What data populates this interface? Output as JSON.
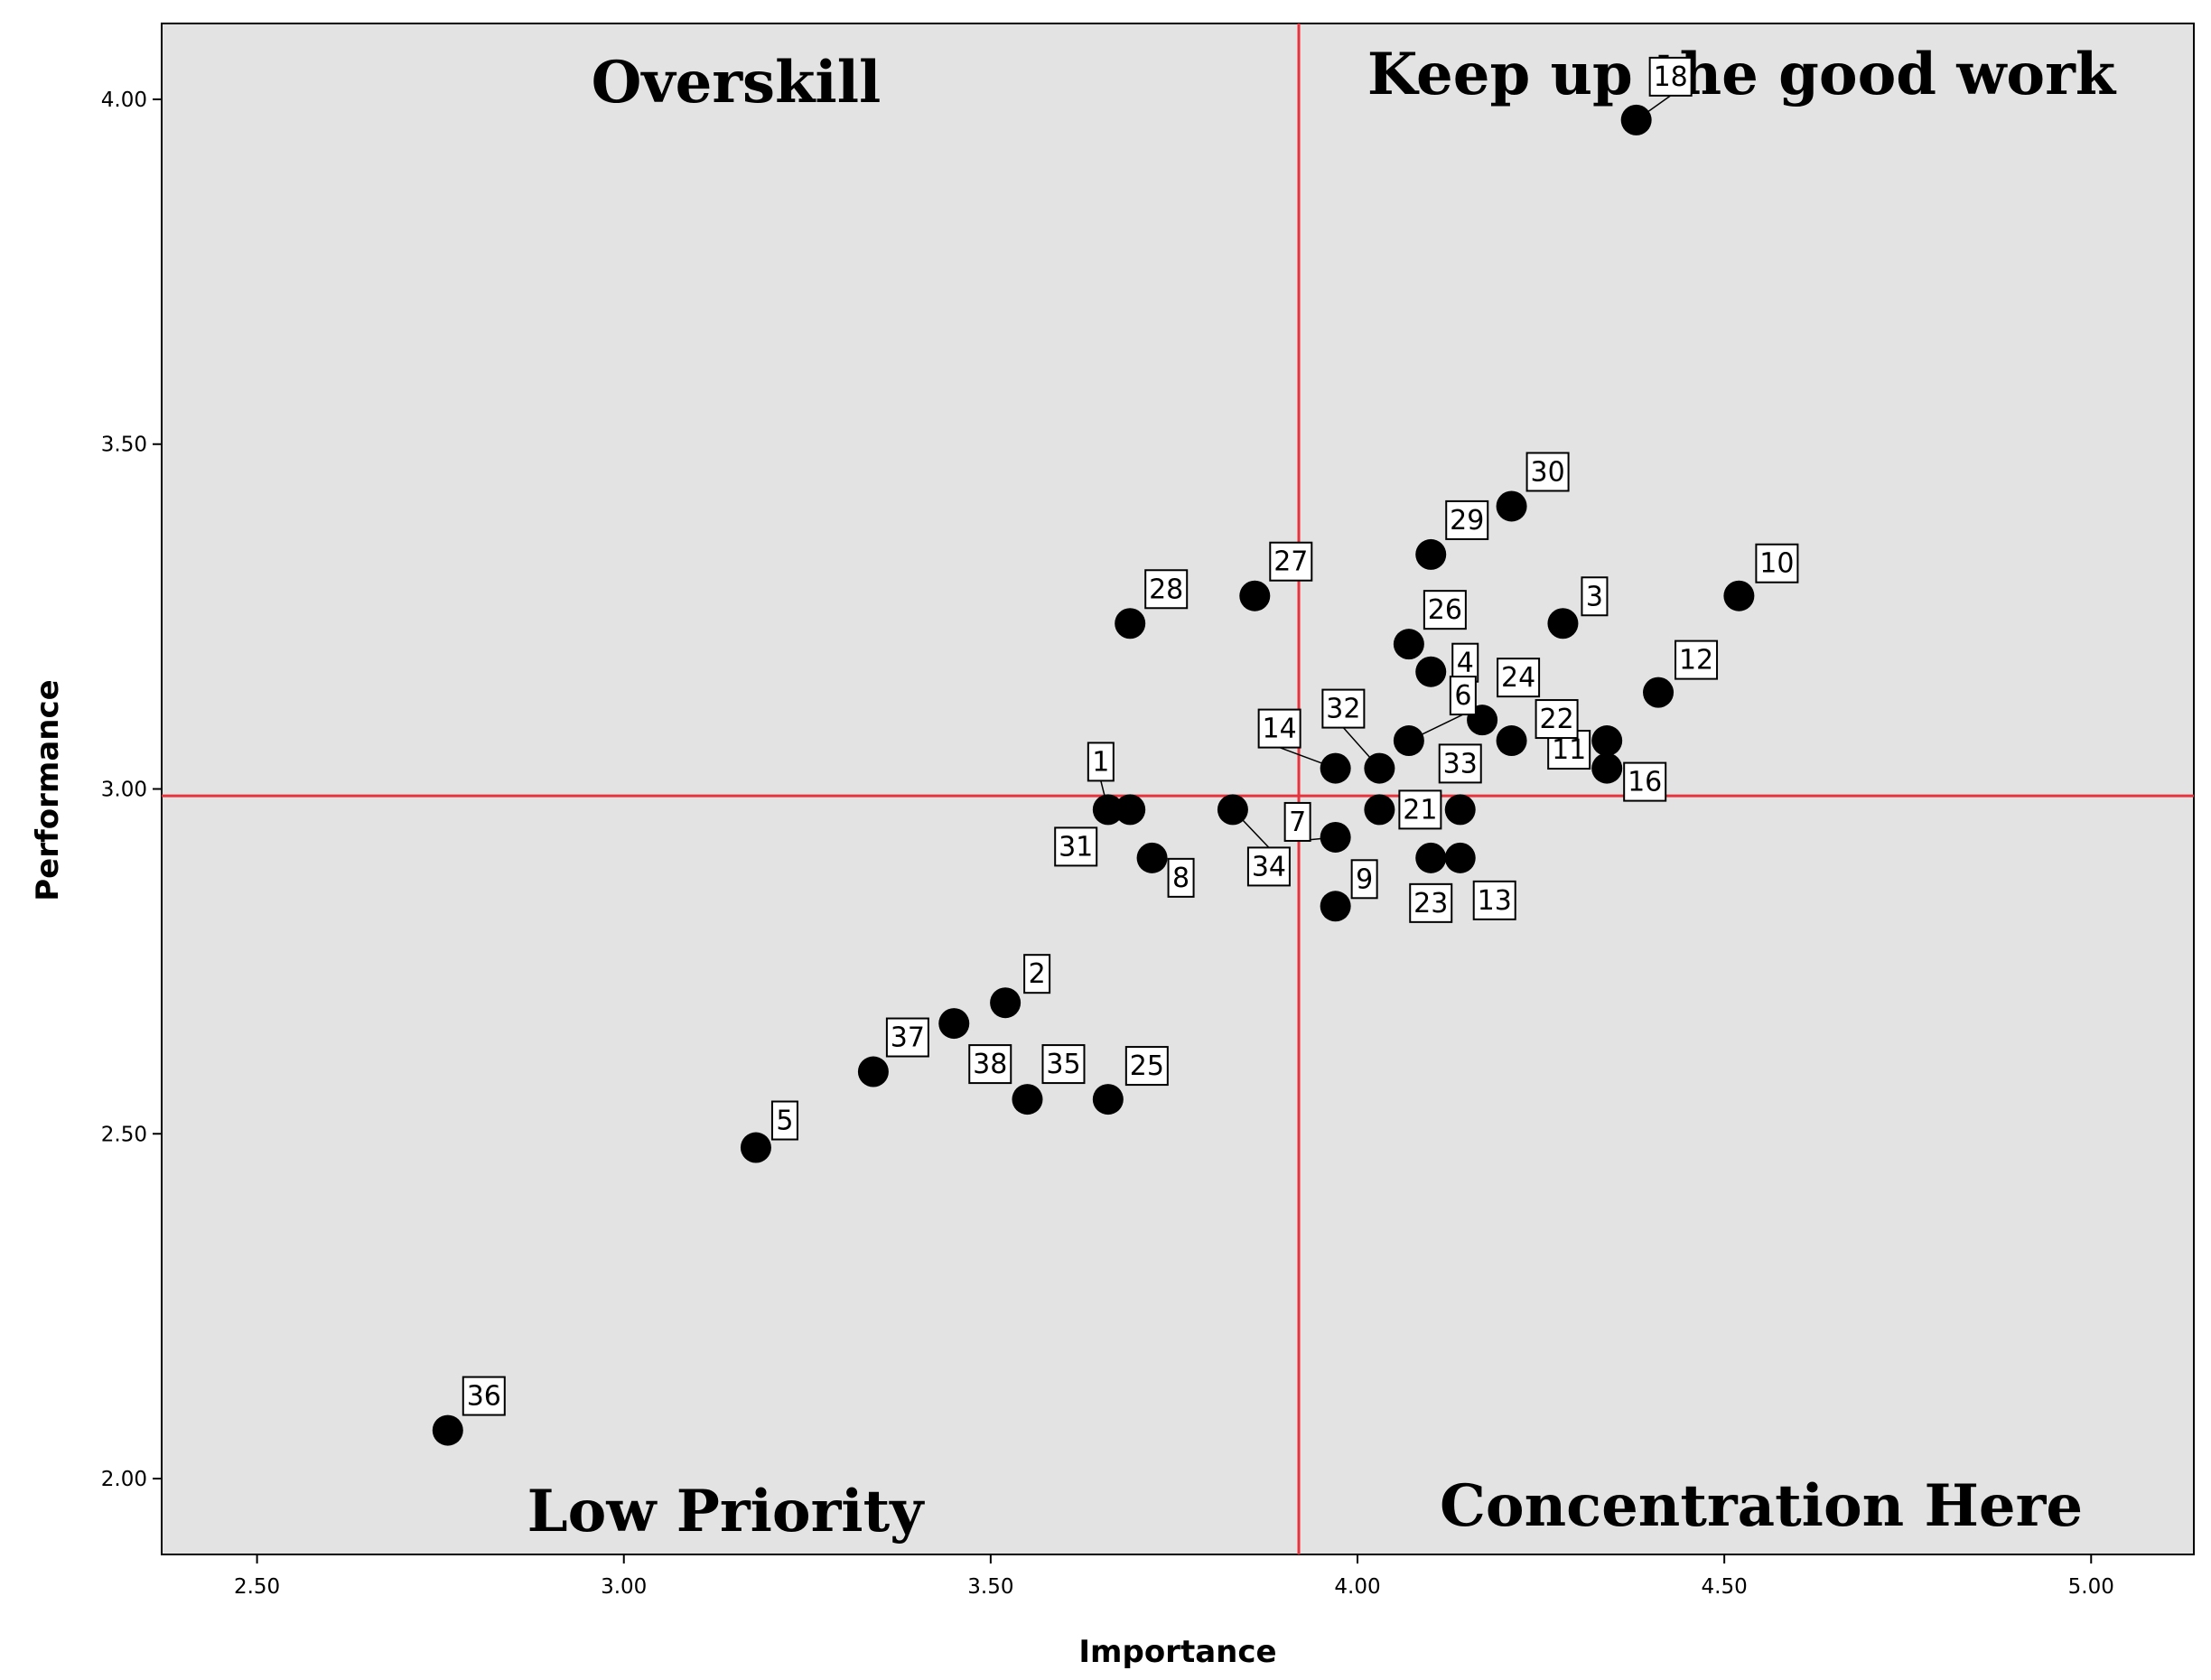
{
  "chart_data": {
    "type": "scatter",
    "xlabel": "Importance",
    "ylabel": "Performance",
    "xlim": [
      2.37,
      5.14
    ],
    "ylim": [
      1.89,
      4.11
    ],
    "x_ticks": [
      "2.50",
      "3.00",
      "3.50",
      "4.00",
      "4.50",
      "5.00"
    ],
    "y_ticks": [
      "2.00",
      "2.50",
      "3.00",
      "3.50",
      "4.00"
    ],
    "reference_lines": {
      "x": 3.92,
      "y": 2.99,
      "color": "#e8323c"
    },
    "quadrant_labels": {
      "top_left": "Overskill",
      "top_right": "Keep up the good work",
      "bottom_left": "Low Priority",
      "bottom_right": "Concentration Here"
    },
    "grid": false,
    "background": "#e3e3e3",
    "marker_color": "#000000",
    "points": [
      {
        "label": "1",
        "x": 3.66,
        "y": 2.97
      },
      {
        "label": "2",
        "x": 3.52,
        "y": 2.69
      },
      {
        "label": "3",
        "x": 4.28,
        "y": 3.24
      },
      {
        "label": "4",
        "x": 4.1,
        "y": 3.17
      },
      {
        "label": "5",
        "x": 3.18,
        "y": 2.48
      },
      {
        "label": "6",
        "x": 4.07,
        "y": 3.07
      },
      {
        "label": "7",
        "x": 3.97,
        "y": 2.93
      },
      {
        "label": "8",
        "x": 3.72,
        "y": 2.9
      },
      {
        "label": "9",
        "x": 3.97,
        "y": 2.83
      },
      {
        "label": "10",
        "x": 4.52,
        "y": 3.28
      },
      {
        "label": "11",
        "x": 4.34,
        "y": 3.07
      },
      {
        "label": "12",
        "x": 4.41,
        "y": 3.14
      },
      {
        "label": "13",
        "x": 4.14,
        "y": 2.9
      },
      {
        "label": "14",
        "x": 3.97,
        "y": 3.03
      },
      {
        "label": "16",
        "x": 4.34,
        "y": 3.03
      },
      {
        "label": "18",
        "x": 4.38,
        "y": 3.97
      },
      {
        "label": "21",
        "x": 4.03,
        "y": 2.97
      },
      {
        "label": "22",
        "x": 4.21,
        "y": 3.07
      },
      {
        "label": "23",
        "x": 4.1,
        "y": 2.9
      },
      {
        "label": "24",
        "x": 4.17,
        "y": 3.1
      },
      {
        "label": "25",
        "x": 3.66,
        "y": 2.55
      },
      {
        "label": "26",
        "x": 4.07,
        "y": 3.21
      },
      {
        "label": "27",
        "x": 3.86,
        "y": 3.28
      },
      {
        "label": "28",
        "x": 3.69,
        "y": 3.24
      },
      {
        "label": "29",
        "x": 4.1,
        "y": 3.34
      },
      {
        "label": "30",
        "x": 4.21,
        "y": 3.41
      },
      {
        "label": "31",
        "x": 3.69,
        "y": 2.97
      },
      {
        "label": "32",
        "x": 4.03,
        "y": 3.03
      },
      {
        "label": "33",
        "x": 4.14,
        "y": 2.97
      },
      {
        "label": "34",
        "x": 3.83,
        "y": 2.97
      },
      {
        "label": "35",
        "x": 3.55,
        "y": 2.55
      },
      {
        "label": "36",
        "x": 2.76,
        "y": 2.07
      },
      {
        "label": "37",
        "x": 3.34,
        "y": 2.59
      },
      {
        "label": "38",
        "x": 3.45,
        "y": 2.66
      }
    ]
  }
}
